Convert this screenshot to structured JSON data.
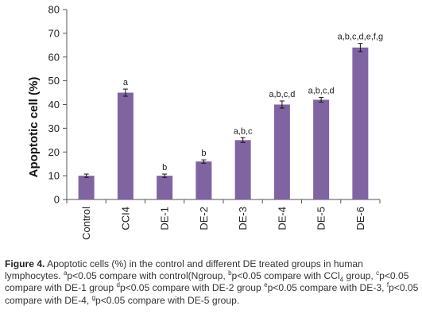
{
  "chart_data": {
    "type": "bar",
    "ylabel": "Apoptotic cell (%)",
    "xlabel": "",
    "ylim": [
      0,
      80
    ],
    "yticks": [
      0,
      10,
      20,
      30,
      40,
      50,
      60,
      70,
      80
    ],
    "grid": false,
    "bar_color": "#8064a2",
    "categories": [
      "Control",
      "CCI4",
      "DE-1",
      "DE-2",
      "DE-3",
      "DE-4",
      "DE-5",
      "DE-6"
    ],
    "values": [
      10,
      45,
      10,
      16,
      25,
      40,
      42,
      64
    ],
    "errors": [
      0.7,
      1.5,
      0.7,
      0.7,
      1.0,
      1.5,
      1.0,
      1.7
    ],
    "labels": [
      "",
      "a",
      "b",
      "b",
      "a,b,c",
      "a,b,c,d",
      "a,b,c,d",
      "a,b,c,d,e,f,g"
    ]
  },
  "caption": {
    "fig_label": "Figure 4.",
    "part1": " Apoptotic cells (%) in the control and different DE treated groups in human lymphocytes. ",
    "sup_a": "a",
    "part2": "p<0.05 compare with control(Ngroup, ",
    "sup_b": "b",
    "part3": "p<0.05 compare with CCl",
    "sub_4": "4",
    "part4": " group, ",
    "sup_c": "c",
    "part5": "p<0.05 compare with DE-1 group ",
    "sup_d": "d",
    "part6": "p<0.05 compare with DE-2 group ",
    "sup_e": "e",
    "part7": "p<0.05 compare with DE-3, ",
    "sup_f": "f",
    "part8": "p<0.05 compare with DE-4, ",
    "sup_g": "g",
    "part9": "p<0.05 compare with DE-5 group."
  }
}
